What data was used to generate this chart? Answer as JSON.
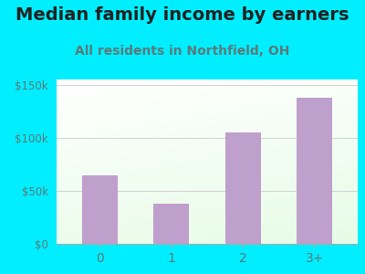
{
  "title": "Median family income by earners",
  "subtitle": "All residents in Northfield, OH",
  "categories": [
    "0",
    "1",
    "2",
    "3+"
  ],
  "values": [
    65000,
    38000,
    105000,
    138000
  ],
  "bar_color": "#bf9fcc",
  "background_outer": "#00eeff",
  "title_color": "#222222",
  "subtitle_color": "#5a7a7a",
  "tick_color": "#5a7a7a",
  "ytick_labels": [
    "$0",
    "$50k",
    "$100k",
    "$150k"
  ],
  "ytick_values": [
    0,
    50000,
    100000,
    150000
  ],
  "ylim": [
    0,
    155000
  ],
  "title_fontsize": 14,
  "subtitle_fontsize": 10,
  "grid_color": "#cccccc"
}
